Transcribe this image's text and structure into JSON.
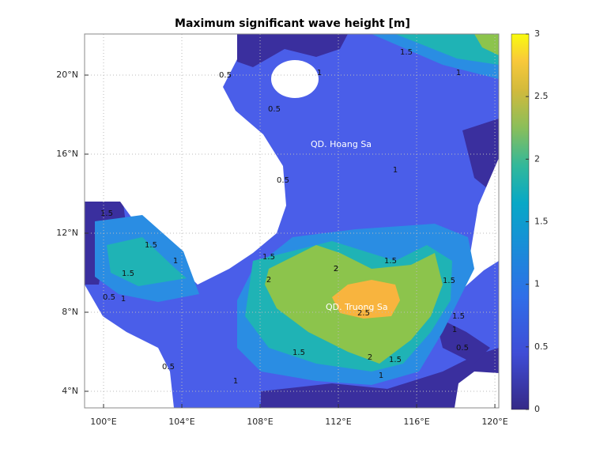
{
  "chart_data": {
    "type": "contourf",
    "title": "Maximum significant wave height [m]",
    "xlim": [
      99.03,
      120.2
    ],
    "ylim": [
      3.16,
      22.08
    ],
    "xticks": [
      {
        "value": 100,
        "label": "100°E"
      },
      {
        "value": 104,
        "label": "104°E"
      },
      {
        "value": 108,
        "label": "108°E"
      },
      {
        "value": 112,
        "label": "112°E"
      },
      {
        "value": 116,
        "label": "116°E"
      },
      {
        "value": 120,
        "label": "120°E"
      }
    ],
    "yticks": [
      {
        "value": 4,
        "label": "4°N"
      },
      {
        "value": 8,
        "label": "8°N"
      },
      {
        "value": 12,
        "label": "12°N"
      },
      {
        "value": 16,
        "label": "16°N"
      },
      {
        "value": 20,
        "label": "20°N"
      }
    ],
    "grid": true,
    "colorbar": {
      "lim": [
        0,
        3
      ],
      "ticks": [
        0,
        0.5,
        1,
        1.5,
        2,
        2.5,
        3
      ]
    },
    "annotations": [
      "QD. Hoang Sa",
      "QD. Truong Sa"
    ],
    "contour_labels": [
      1.5,
      1,
      0.5,
      0.5,
      1,
      1,
      0.5,
      1.5,
      1.5,
      1,
      0.5,
      1,
      0.5,
      1.5,
      2,
      2,
      1.5,
      1.5,
      2.5,
      2,
      1.5,
      1,
      1.5,
      1,
      0.5,
      1,
      1.5,
      1.5,
      2
    ]
  }
}
